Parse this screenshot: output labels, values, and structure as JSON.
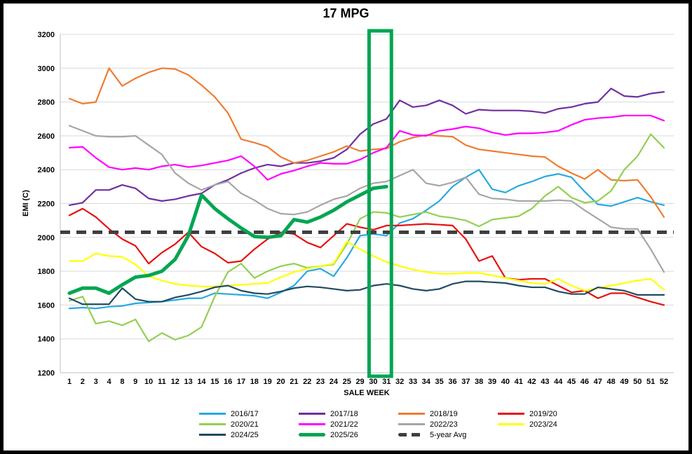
{
  "chart_data": {
    "type": "line",
    "title": "17 MPG",
    "x_label": "SALE WEEK",
    "y_label": "EMI (C)",
    "y_min": 1200,
    "y_max": 3200,
    "y_tick_step": 200,
    "grid": "horizontal",
    "legend_position": "bottom",
    "x_categories": [
      "1",
      "2",
      "3",
      "4",
      "8",
      "9",
      "10",
      "11",
      "12",
      "13",
      "14",
      "15",
      "16",
      "17",
      "18",
      "19",
      "20",
      "21",
      "22",
      "23",
      "24",
      "25",
      "29",
      "30",
      "31",
      "32",
      "33",
      "34",
      "35",
      "36",
      "37",
      "38",
      "39",
      "40",
      "41",
      "42",
      "43",
      "44",
      "45",
      "46",
      "47",
      "48",
      "49",
      "50",
      "51",
      "52"
    ],
    "series": [
      {
        "name": "2016/17",
        "color": "#29A9E1",
        "values": [
          1580,
          1585,
          1580,
          1590,
          1595,
          1610,
          1615,
          1620,
          1630,
          1640,
          1640,
          1670,
          1665,
          1660,
          1655,
          1640,
          1675,
          1715,
          1800,
          1815,
          1770,
          1880,
          2010,
          2020,
          2010,
          2085,
          2110,
          2160,
          2215,
          2300,
          2355,
          2400,
          2285,
          2265,
          2305,
          2330,
          2360,
          2375,
          2355,
          2270,
          2195,
          2185,
          2210,
          2235,
          2210,
          2190
        ]
      },
      {
        "name": "2017/18",
        "color": "#7030A0",
        "values": [
          2190,
          2205,
          2280,
          2280,
          2310,
          2290,
          2230,
          2215,
          2225,
          2245,
          2260,
          2310,
          2340,
          2380,
          2410,
          2430,
          2420,
          2440,
          2440,
          2450,
          2470,
          2520,
          2610,
          2670,
          2700,
          2810,
          2770,
          2780,
          2810,
          2780,
          2730,
          2755,
          2750,
          2750,
          2750,
          2745,
          2735,
          2760,
          2770,
          2790,
          2800,
          2880,
          2835,
          2830,
          2850,
          2860
        ]
      },
      {
        "name": "2018/19",
        "color": "#ED7D31",
        "values": [
          2820,
          2790,
          2800,
          3000,
          2895,
          2940,
          2975,
          3000,
          2995,
          2960,
          2900,
          2830,
          2735,
          2580,
          2560,
          2535,
          2475,
          2440,
          2455,
          2480,
          2505,
          2540,
          2510,
          2520,
          2525,
          2565,
          2590,
          2605,
          2600,
          2595,
          2545,
          2520,
          2510,
          2500,
          2490,
          2480,
          2475,
          2420,
          2380,
          2345,
          2400,
          2340,
          2335,
          2340,
          2240,
          2120
        ]
      },
      {
        "name": "2019/20",
        "color": "#E71010",
        "values": [
          2130,
          2170,
          2120,
          2050,
          1990,
          1950,
          1845,
          1910,
          1960,
          2030,
          1945,
          1905,
          1850,
          1860,
          1930,
          1990,
          2030,
          2020,
          1970,
          1940,
          2010,
          2080,
          2060,
          2045,
          2070,
          2070,
          2075,
          2080,
          2075,
          2070,
          1990,
          1860,
          1890,
          1760,
          1750,
          1755,
          1755,
          1715,
          1675,
          1685,
          1640,
          1670,
          1670,
          1645,
          1620,
          1600
        ]
      },
      {
        "name": "2020/21",
        "color": "#92D050",
        "values": [
          1625,
          1650,
          1490,
          1505,
          1480,
          1515,
          1385,
          1435,
          1395,
          1420,
          1470,
          1650,
          1795,
          1845,
          1760,
          1800,
          1830,
          1845,
          1820,
          1830,
          1840,
          1960,
          2110,
          2150,
          2145,
          2120,
          2135,
          2150,
          2125,
          2115,
          2100,
          2065,
          2105,
          2115,
          2125,
          2170,
          2245,
          2300,
          2235,
          2205,
          2215,
          2275,
          2400,
          2480,
          2610,
          2530
        ]
      },
      {
        "name": "2021/22",
        "color": "#FF00FF",
        "values": [
          2530,
          2535,
          2470,
          2415,
          2400,
          2410,
          2400,
          2420,
          2430,
          2415,
          2425,
          2440,
          2455,
          2480,
          2420,
          2340,
          2375,
          2395,
          2420,
          2440,
          2435,
          2435,
          2460,
          2500,
          2530,
          2630,
          2605,
          2600,
          2630,
          2640,
          2655,
          2645,
          2620,
          2605,
          2615,
          2615,
          2620,
          2630,
          2665,
          2695,
          2705,
          2710,
          2720,
          2720,
          2720,
          2690
        ]
      },
      {
        "name": "2022/23",
        "color": "#A6A6A6",
        "values": [
          2660,
          2630,
          2600,
          2595,
          2595,
          2600,
          2545,
          2490,
          2380,
          2320,
          2280,
          2310,
          2330,
          2260,
          2220,
          2170,
          2140,
          2135,
          2150,
          2190,
          2225,
          2245,
          2290,
          2320,
          2330,
          2365,
          2400,
          2320,
          2305,
          2325,
          2355,
          2255,
          2230,
          2225,
          2215,
          2215,
          2215,
          2220,
          2215,
          2160,
          2110,
          2060,
          2050,
          2050,
          1930,
          1795
        ]
      },
      {
        "name": "2023/24",
        "color": "#FFFF00",
        "values": [
          1860,
          1860,
          1905,
          1890,
          1885,
          1840,
          1770,
          1745,
          1725,
          1715,
          1710,
          1710,
          1715,
          1720,
          1725,
          1730,
          1765,
          1795,
          1815,
          1830,
          1845,
          1975,
          1930,
          1890,
          1855,
          1830,
          1810,
          1795,
          1785,
          1785,
          1790,
          1790,
          1775,
          1760,
          1745,
          1730,
          1725,
          1755,
          1715,
          1685,
          1700,
          1715,
          1730,
          1745,
          1755,
          1690
        ]
      },
      {
        "name": "2024/25",
        "color": "#204B61",
        "values": [
          1640,
          1605,
          1605,
          1605,
          1700,
          1635,
          1620,
          1620,
          1645,
          1660,
          1680,
          1705,
          1715,
          1685,
          1670,
          1665,
          1680,
          1700,
          1710,
          1705,
          1695,
          1685,
          1690,
          1715,
          1725,
          1715,
          1695,
          1685,
          1695,
          1725,
          1740,
          1740,
          1735,
          1730,
          1715,
          1705,
          1705,
          1680,
          1665,
          1665,
          1705,
          1695,
          1685,
          1660,
          1660,
          1660
        ]
      },
      {
        "name": "2025/26",
        "color": "#00A651",
        "thick": true,
        "values": [
          1670,
          1700,
          1700,
          1670,
          1720,
          1765,
          1775,
          1800,
          1870,
          2010,
          2250,
          2170,
          2110,
          2055,
          2005,
          2000,
          2010,
          2105,
          2090,
          2120,
          2160,
          2210,
          2250,
          2290,
          2300
        ]
      }
    ],
    "avg_line": {
      "name": "5-year Avg",
      "value": 2030,
      "color": "#3F3F3F",
      "dashed": true
    },
    "highlight_box": {
      "from_week": "30",
      "to_week": "31",
      "color": "#00A651"
    }
  }
}
